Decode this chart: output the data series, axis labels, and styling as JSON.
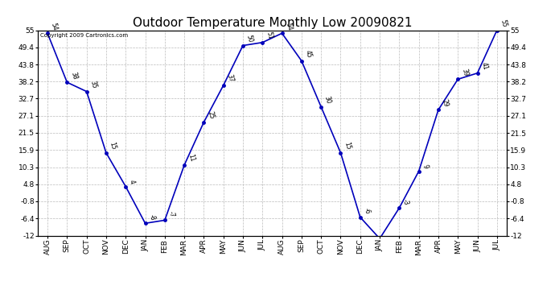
{
  "title": "Outdoor Temperature Monthly Low 20090821",
  "copyright": "Copyright 2009 Cartronics.com",
  "months": [
    "AUG",
    "SEP",
    "OCT",
    "NOV",
    "DEC",
    "JAN",
    "FEB",
    "MAR",
    "APR",
    "MAY",
    "JUN",
    "JUL",
    "AUG",
    "SEP",
    "OCT",
    "NOV",
    "DEC",
    "JAN",
    "FEB",
    "MAR",
    "APR",
    "MAY",
    "JUN",
    "JUL"
  ],
  "values": [
    54,
    38,
    35,
    15,
    4,
    -8,
    -7,
    11,
    25,
    37,
    50,
    51,
    54,
    45,
    30,
    15,
    -6,
    -13,
    -3,
    9,
    29,
    39,
    41,
    55
  ],
  "line_color": "#0000bb",
  "marker_color": "#0000bb",
  "bg_color": "#ffffff",
  "plot_bg_color": "#ffffff",
  "grid_color": "#bbbbbb",
  "title_fontsize": 11,
  "tick_fontsize": 6.5,
  "ylim_min": -12.0,
  "ylim_max": 55.0,
  "yticks": [
    -12.0,
    -6.4,
    -0.8,
    4.8,
    10.3,
    15.9,
    21.5,
    27.1,
    32.7,
    38.2,
    43.8,
    49.4,
    55.0
  ]
}
